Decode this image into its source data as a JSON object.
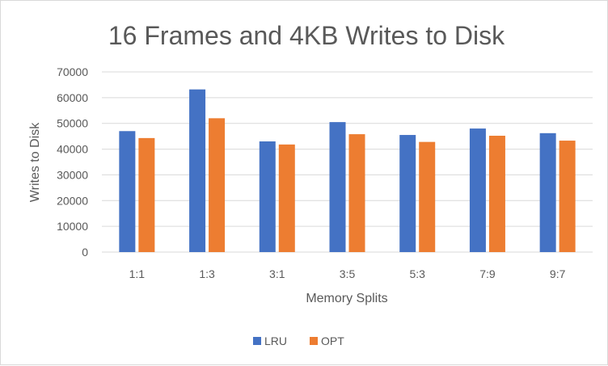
{
  "chart_data": {
    "type": "bar",
    "title": "16 Frames and 4KB Writes to Disk",
    "xlabel": "Memory Splits",
    "ylabel": "Writes to Disk",
    "categories": [
      "1:1",
      "1:3",
      "3:1",
      "3:5",
      "5:3",
      "7:9",
      "9:7"
    ],
    "series": [
      {
        "name": "LRU",
        "color": "#4472C4",
        "values": [
          47000,
          63200,
          43000,
          50500,
          45500,
          48000,
          46200
        ]
      },
      {
        "name": "OPT",
        "color": "#ED7D31",
        "values": [
          44300,
          52000,
          41800,
          45800,
          42800,
          45200,
          43300
        ]
      }
    ],
    "ylim": [
      0,
      70000
    ],
    "yticks": [
      "0",
      "10000",
      "20000",
      "30000",
      "40000",
      "50000",
      "60000",
      "70000"
    ],
    "grid": true,
    "legend_position": "bottom"
  }
}
